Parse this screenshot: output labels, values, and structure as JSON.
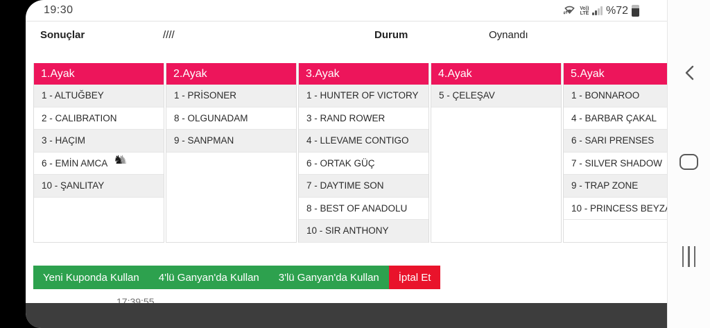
{
  "status_bar": {
    "time": "19:30",
    "volte_top": "Vo))",
    "volte_bottom": "LTE",
    "battery_percent": "%72",
    "battery_level": 72
  },
  "results_header": {
    "title": "Sonuçlar",
    "code": "////",
    "status_label": "Durum",
    "status_value": "Oynandı"
  },
  "table": {
    "columns": [
      {
        "header": "1.Ayak",
        "rows": [
          {
            "label": "1 - ALTUĞBEY"
          },
          {
            "label": "2 - CALIBRATION"
          },
          {
            "label": "3 - HAÇIM"
          },
          {
            "label": "6 - EMİN AMCA",
            "icon": "horse-head"
          },
          {
            "label": "10 - ŞANLITAY"
          }
        ]
      },
      {
        "header": "2.Ayak",
        "rows": [
          {
            "label": "1 - PRİSONER"
          },
          {
            "label": "8 - OLGUNADAM"
          },
          {
            "label": "9 - SANPMAN"
          }
        ]
      },
      {
        "header": "3.Ayak",
        "rows": [
          {
            "label": "1 - HUNTER OF VICTORY"
          },
          {
            "label": "3 - RAND ROWER"
          },
          {
            "label": "4 - LLEVAME CONTIGO"
          },
          {
            "label": "6 - ORTAK GÜÇ"
          },
          {
            "label": "7 - DAYTIME SON"
          },
          {
            "label": "8 - BEST OF ANADOLU"
          },
          {
            "label": "10 - SIR ANTHONY"
          }
        ]
      },
      {
        "header": "4.Ayak",
        "rows": [
          {
            "label": "5 - ÇELEŞAV"
          }
        ]
      },
      {
        "header": "5.Ayak",
        "rows": [
          {
            "label": "1 - BONNAROO"
          },
          {
            "label": "4 - BARBAR ÇAKAL"
          },
          {
            "label": "6 - SARI PRENSES"
          },
          {
            "label": "7 - SILVER SHADOW"
          },
          {
            "label": "9 - TRAP ZONE"
          },
          {
            "label": "10 - PRINCESS BEYZA"
          }
        ]
      }
    ]
  },
  "actions": {
    "buttons": [
      {
        "label": "Yeni Kuponda Kullan",
        "color": "green"
      },
      {
        "label": "4'lü Ganyan'da Kullan",
        "color": "green"
      },
      {
        "label": "3'lü Ganyan'da Kullan",
        "color": "green"
      },
      {
        "label": "İptal Et",
        "color": "red"
      }
    ]
  },
  "clipped_time": "17:39:55",
  "colors": {
    "leg_header": "#ED155B",
    "row_alt": "#EFEFEF",
    "action_green": "#2DA14E",
    "action_red": "#E9132B",
    "footer_dark": "#3D3D3D"
  }
}
